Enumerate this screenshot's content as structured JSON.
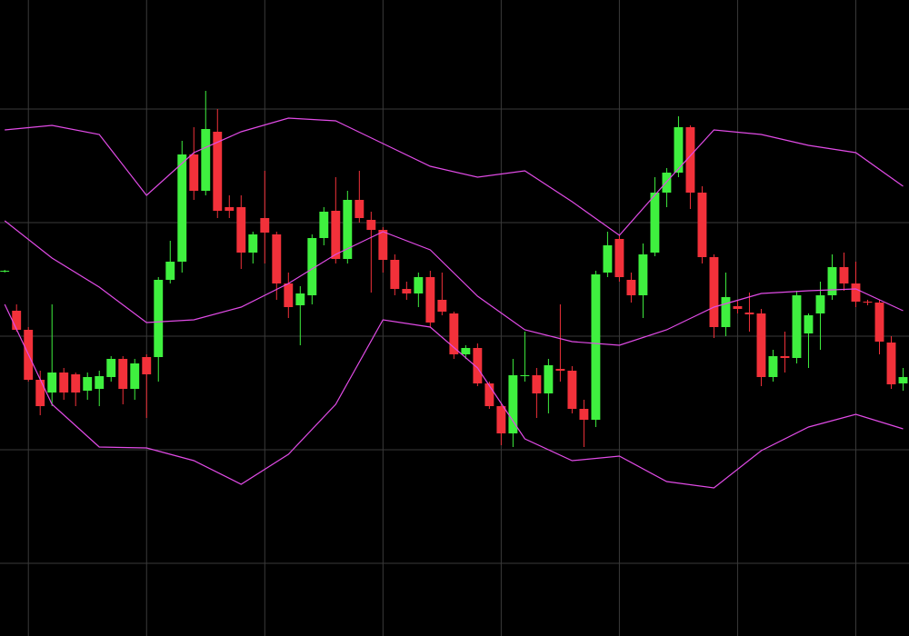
{
  "chart_data": {
    "type": "candlestick",
    "x": [
      0,
      1,
      2,
      3,
      4,
      5,
      6,
      7,
      8,
      9,
      10,
      11,
      12,
      13,
      14,
      15,
      16,
      17,
      18,
      19,
      20,
      21,
      22,
      23,
      24,
      25,
      26,
      27,
      28,
      29,
      30,
      31,
      32,
      33,
      34,
      35,
      36,
      37,
      38,
      39,
      40,
      41,
      42,
      43,
      44,
      45,
      46,
      47,
      48,
      49,
      50,
      51,
      52,
      53,
      54,
      55,
      56,
      57,
      58,
      59,
      60,
      61,
      62,
      63,
      64,
      65,
      66,
      67,
      68,
      69,
      70,
      71,
      72,
      73,
      74,
      75,
      76
    ],
    "open": [
      402,
      358,
      337,
      282,
      268,
      290,
      288,
      270,
      272,
      285,
      305,
      272,
      307,
      307,
      392,
      412,
      530,
      490,
      555,
      472,
      472,
      422,
      460,
      442,
      388,
      364,
      375,
      438,
      468,
      415,
      480,
      458,
      447,
      414,
      382,
      377,
      395,
      370,
      355,
      310,
      317,
      278,
      253,
      223,
      286,
      287,
      267,
      294,
      292,
      250,
      238,
      400,
      437,
      392,
      375,
      422,
      488,
      510,
      560,
      488,
      417,
      340,
      363,
      356,
      355,
      285,
      308,
      306,
      333,
      355,
      375,
      406,
      388,
      368,
      367,
      323,
      278
    ],
    "high": [
      403,
      365,
      340,
      292,
      365,
      295,
      290,
      290,
      292,
      308,
      308,
      305,
      310,
      395,
      435,
      545,
      560,
      600,
      580,
      485,
      485,
      445,
      512,
      445,
      400,
      385,
      442,
      472,
      505,
      490,
      512,
      467,
      450,
      420,
      390,
      400,
      402,
      400,
      357,
      320,
      322,
      280,
      255,
      305,
      335,
      295,
      305,
      365,
      297,
      260,
      402,
      445,
      442,
      400,
      432,
      505,
      515,
      572,
      562,
      495,
      420,
      400,
      370,
      378,
      360,
      315,
      335,
      380,
      355,
      390,
      420,
      422,
      412,
      370,
      370,
      330,
      295
    ],
    "low": [
      400,
      335,
      280,
      243,
      253,
      260,
      253,
      260,
      253,
      280,
      255,
      260,
      240,
      280,
      388,
      400,
      480,
      485,
      460,
      460,
      404,
      410,
      410,
      370,
      350,
      320,
      365,
      430,
      410,
      410,
      455,
      378,
      400,
      375,
      370,
      362,
      340,
      353,
      305,
      305,
      275,
      250,
      210,
      208,
      280,
      240,
      245,
      280,
      245,
      208,
      230,
      395,
      390,
      367,
      350,
      418,
      472,
      505,
      470,
      410,
      328,
      330,
      355,
      335,
      275,
      280,
      290,
      300,
      295,
      315,
      370,
      380,
      362,
      364,
      310,
      272,
      270
    ],
    "close": [
      402,
      337,
      282,
      253,
      290,
      268,
      268,
      285,
      286,
      305,
      272,
      300,
      288,
      392,
      412,
      530,
      490,
      558,
      468,
      468,
      422,
      442,
      444,
      388,
      362,
      377,
      438,
      467,
      415,
      480,
      460,
      447,
      414,
      382,
      377,
      395,
      345,
      357,
      310,
      317,
      278,
      253,
      223,
      287,
      287,
      267,
      298,
      292,
      250,
      238,
      398,
      430,
      395,
      375,
      420,
      488,
      510,
      560,
      488,
      417,
      340,
      373,
      360,
      354,
      285,
      308,
      306,
      375,
      353,
      375,
      406,
      388,
      368,
      367,
      324,
      277,
      285
    ],
    "up_color": "#3ff03f",
    "down_color": "#f2313a",
    "bands": [
      {
        "color": "#e14be6",
        "x": [
          0,
          4,
          8,
          12,
          16,
          20,
          24,
          28,
          32,
          36,
          40,
          44,
          48,
          52,
          56,
          60,
          64,
          68,
          72,
          76
        ],
        "values": [
          557,
          562,
          552,
          485,
          532,
          555,
          570,
          567,
          542,
          517,
          505,
          512,
          478,
          441,
          500,
          557,
          552,
          540,
          532,
          495
        ]
      },
      {
        "color": "#e14be6",
        "x": [
          0,
          4,
          8,
          12,
          16,
          20,
          24,
          28,
          32,
          36,
          40,
          44,
          48,
          52,
          56,
          60,
          64,
          68,
          72,
          76
        ],
        "values": [
          457,
          416,
          384,
          345,
          348,
          362,
          388,
          420,
          445,
          425,
          374,
          337,
          324,
          320,
          337,
          362,
          377,
          380,
          382,
          358
        ]
      },
      {
        "color": "#e14be6",
        "x": [
          0,
          4,
          8,
          12,
          16,
          20,
          24,
          28,
          32,
          36,
          40,
          44,
          48,
          52,
          56,
          60,
          64,
          68,
          72,
          76
        ],
        "values": [
          365,
          255,
          208,
          207,
          193,
          167,
          200,
          255,
          348,
          340,
          295,
          217,
          193,
          198,
          170,
          163,
          204,
          230,
          244,
          228
        ]
      }
    ],
    "xlim": [
      -0.4,
      76.5
    ],
    "ylim": [
      0,
      700
    ],
    "xticks": [
      2,
      12,
      22,
      32,
      42,
      52,
      62,
      72
    ],
    "yticks": [
      80,
      205,
      330,
      455,
      580
    ],
    "grid": true
  }
}
